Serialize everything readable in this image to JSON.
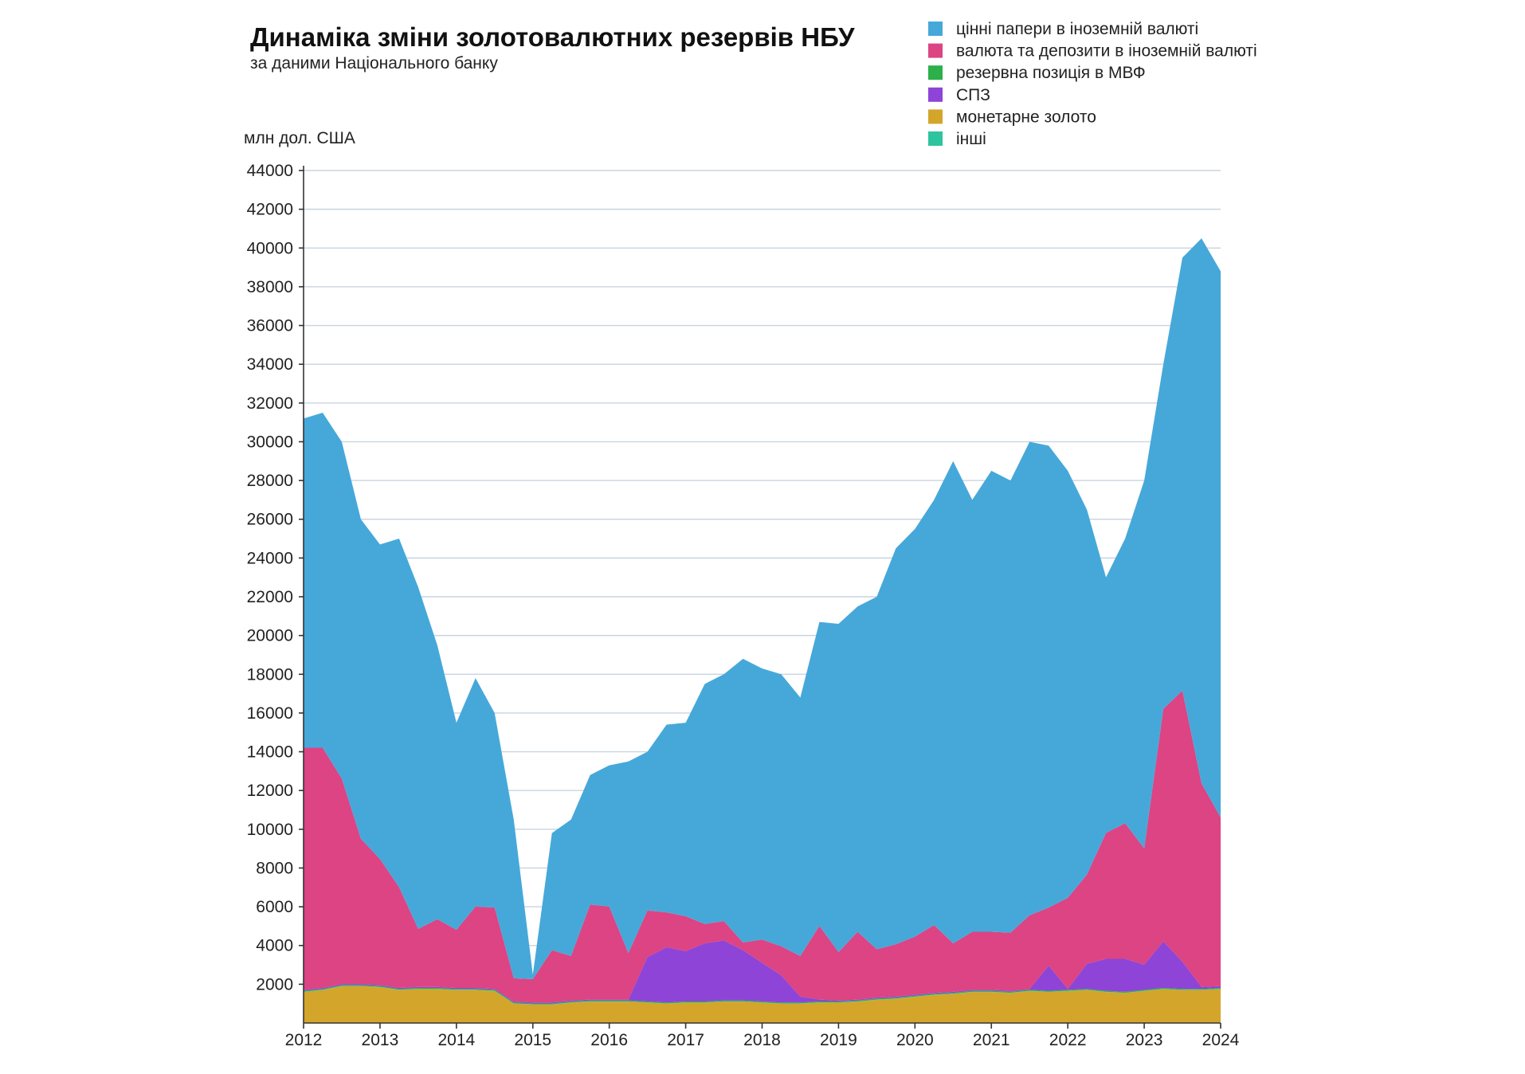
{
  "chart_data": {
    "type": "area",
    "stacked": true,
    "title": "Динаміка зміни золотовалютних резервів НБУ",
    "subtitle": "за даними Національного банку",
    "ylabel": "млн дол. США",
    "ylim": [
      0,
      44000
    ],
    "yticks": [
      2000,
      4000,
      6000,
      8000,
      10000,
      12000,
      14000,
      16000,
      18000,
      20000,
      22000,
      24000,
      26000,
      28000,
      30000,
      32000,
      34000,
      36000,
      38000,
      40000,
      42000,
      44000
    ],
    "xticks": [
      "2012",
      "2013",
      "2014",
      "2015",
      "2016",
      "2017",
      "2018",
      "2019",
      "2020",
      "2021",
      "2022",
      "2023",
      "2024"
    ],
    "xlim": [
      2012.0,
      2024.0
    ],
    "grid": true,
    "legend_position": "top-right",
    "x": [
      2012.0,
      2012.25,
      2012.5,
      2012.75,
      2013.0,
      2013.25,
      2013.5,
      2013.75,
      2014.0,
      2014.25,
      2014.5,
      2014.75,
      2015.0,
      2015.25,
      2015.5,
      2015.75,
      2016.0,
      2016.25,
      2016.5,
      2016.75,
      2017.0,
      2017.25,
      2017.5,
      2017.75,
      2018.0,
      2018.25,
      2018.5,
      2018.75,
      2019.0,
      2019.25,
      2019.5,
      2019.75,
      2020.0,
      2020.25,
      2020.5,
      2020.75,
      2021.0,
      2021.25,
      2021.5,
      2021.75,
      2022.0,
      2022.25,
      2022.5,
      2022.75,
      2023.0,
      2023.25,
      2023.5,
      2023.75,
      2024.0
    ],
    "total": [
      31200,
      31500,
      30000,
      26000,
      24700,
      25000,
      22500,
      19500,
      15500,
      17800,
      16000,
      10500,
      2500,
      9800,
      10500,
      12800,
      13300,
      13500,
      14000,
      15400,
      15500,
      17500,
      18000,
      18800,
      18300,
      18000,
      16800,
      20700,
      20600,
      21500,
      22000,
      24500,
      25500,
      27000,
      29000,
      27000,
      28500,
      28000,
      30000,
      29800,
      28500,
      26500,
      23000,
      25000,
      28000,
      34000,
      39500,
      40500,
      38800
    ],
    "series": [
      {
        "name": "монетарне золото",
        "color": "#d4a52b",
        "values": [
          1600,
          1700,
          1900,
          1900,
          1850,
          1700,
          1750,
          1750,
          1700,
          1700,
          1650,
          1000,
          950,
          950,
          1050,
          1100,
          1100,
          1100,
          1050,
          1000,
          1050,
          1050,
          1100,
          1100,
          1050,
          1000,
          1000,
          1050,
          1050,
          1100,
          1200,
          1250,
          1350,
          1450,
          1500,
          1600,
          1600,
          1550,
          1650,
          1600,
          1650,
          1700,
          1600,
          1550,
          1650,
          1750,
          1700,
          1700,
          1750
        ]
      },
      {
        "name": "інші",
        "color": "#2ec4a0",
        "values": [
          10,
          10,
          10,
          10,
          10,
          10,
          10,
          10,
          10,
          10,
          10,
          10,
          10,
          10,
          10,
          10,
          10,
          10,
          10,
          10,
          10,
          10,
          10,
          10,
          10,
          10,
          10,
          10,
          10,
          10,
          10,
          10,
          10,
          10,
          10,
          10,
          10,
          10,
          10,
          10,
          10,
          10,
          10,
          10,
          10,
          10,
          10,
          10,
          10
        ]
      },
      {
        "name": "резервна позиція в МВФ",
        "color": "#2bb04a",
        "values": [
          50,
          50,
          50,
          50,
          50,
          50,
          50,
          50,
          50,
          50,
          50,
          50,
          50,
          50,
          50,
          50,
          50,
          50,
          50,
          50,
          50,
          50,
          50,
          50,
          50,
          50,
          50,
          50,
          50,
          50,
          50,
          50,
          50,
          50,
          50,
          50,
          50,
          50,
          50,
          50,
          50,
          50,
          50,
          50,
          50,
          50,
          50,
          50,
          50
        ]
      },
      {
        "name": "СПЗ",
        "color": "#8e44d6",
        "values": [
          50,
          50,
          50,
          50,
          50,
          50,
          50,
          50,
          50,
          50,
          50,
          50,
          50,
          50,
          50,
          50,
          50,
          50,
          2300,
          2850,
          2600,
          3000,
          3100,
          2600,
          2000,
          1400,
          300,
          100,
          50,
          50,
          50,
          50,
          50,
          50,
          50,
          50,
          50,
          50,
          50,
          1300,
          50,
          1300,
          1650,
          1700,
          1300,
          2400,
          1400,
          100,
          100
        ]
      },
      {
        "name": "валюта та депозити в іноземній валюті",
        "color": "#dc4483",
        "values": [
          12500,
          12400,
          10600,
          7500,
          6500,
          5200,
          3000,
          3500,
          3000,
          4200,
          4200,
          1200,
          1200,
          2700,
          2300,
          4900,
          4800,
          2400,
          2400,
          1800,
          1800,
          1000,
          1000,
          400,
          1200,
          1500,
          2100,
          3800,
          2500,
          3500,
          2500,
          2700,
          3000,
          3500,
          2500,
          3000,
          3000,
          3000,
          3800,
          3000,
          4700,
          4600,
          6500,
          7000,
          6000,
          12000,
          14000,
          10500,
          8700
        ]
      },
      {
        "name": "цінні папери в іноземній валюті",
        "color": "#46a8d9",
        "values": [
          16990,
          17290,
          17390,
          16490,
          16240,
          17990,
          17640,
          14140,
          10740,
          11790,
          10040,
          8190,
          240,
          6090,
          7040,
          6690,
          7290,
          9890,
          8440,
          9690,
          9990,
          12390,
          12740,
          14640,
          13990,
          14040,
          13340,
          15690,
          16940,
          16790,
          18190,
          20390,
          21040,
          21940,
          24890,
          22290,
          23790,
          23340,
          24440,
          24140,
          22040,
          18840,
          13180,
          14690,
          18990,
          17790,
          22340,
          28140,
          28190
        ]
      }
    ]
  }
}
